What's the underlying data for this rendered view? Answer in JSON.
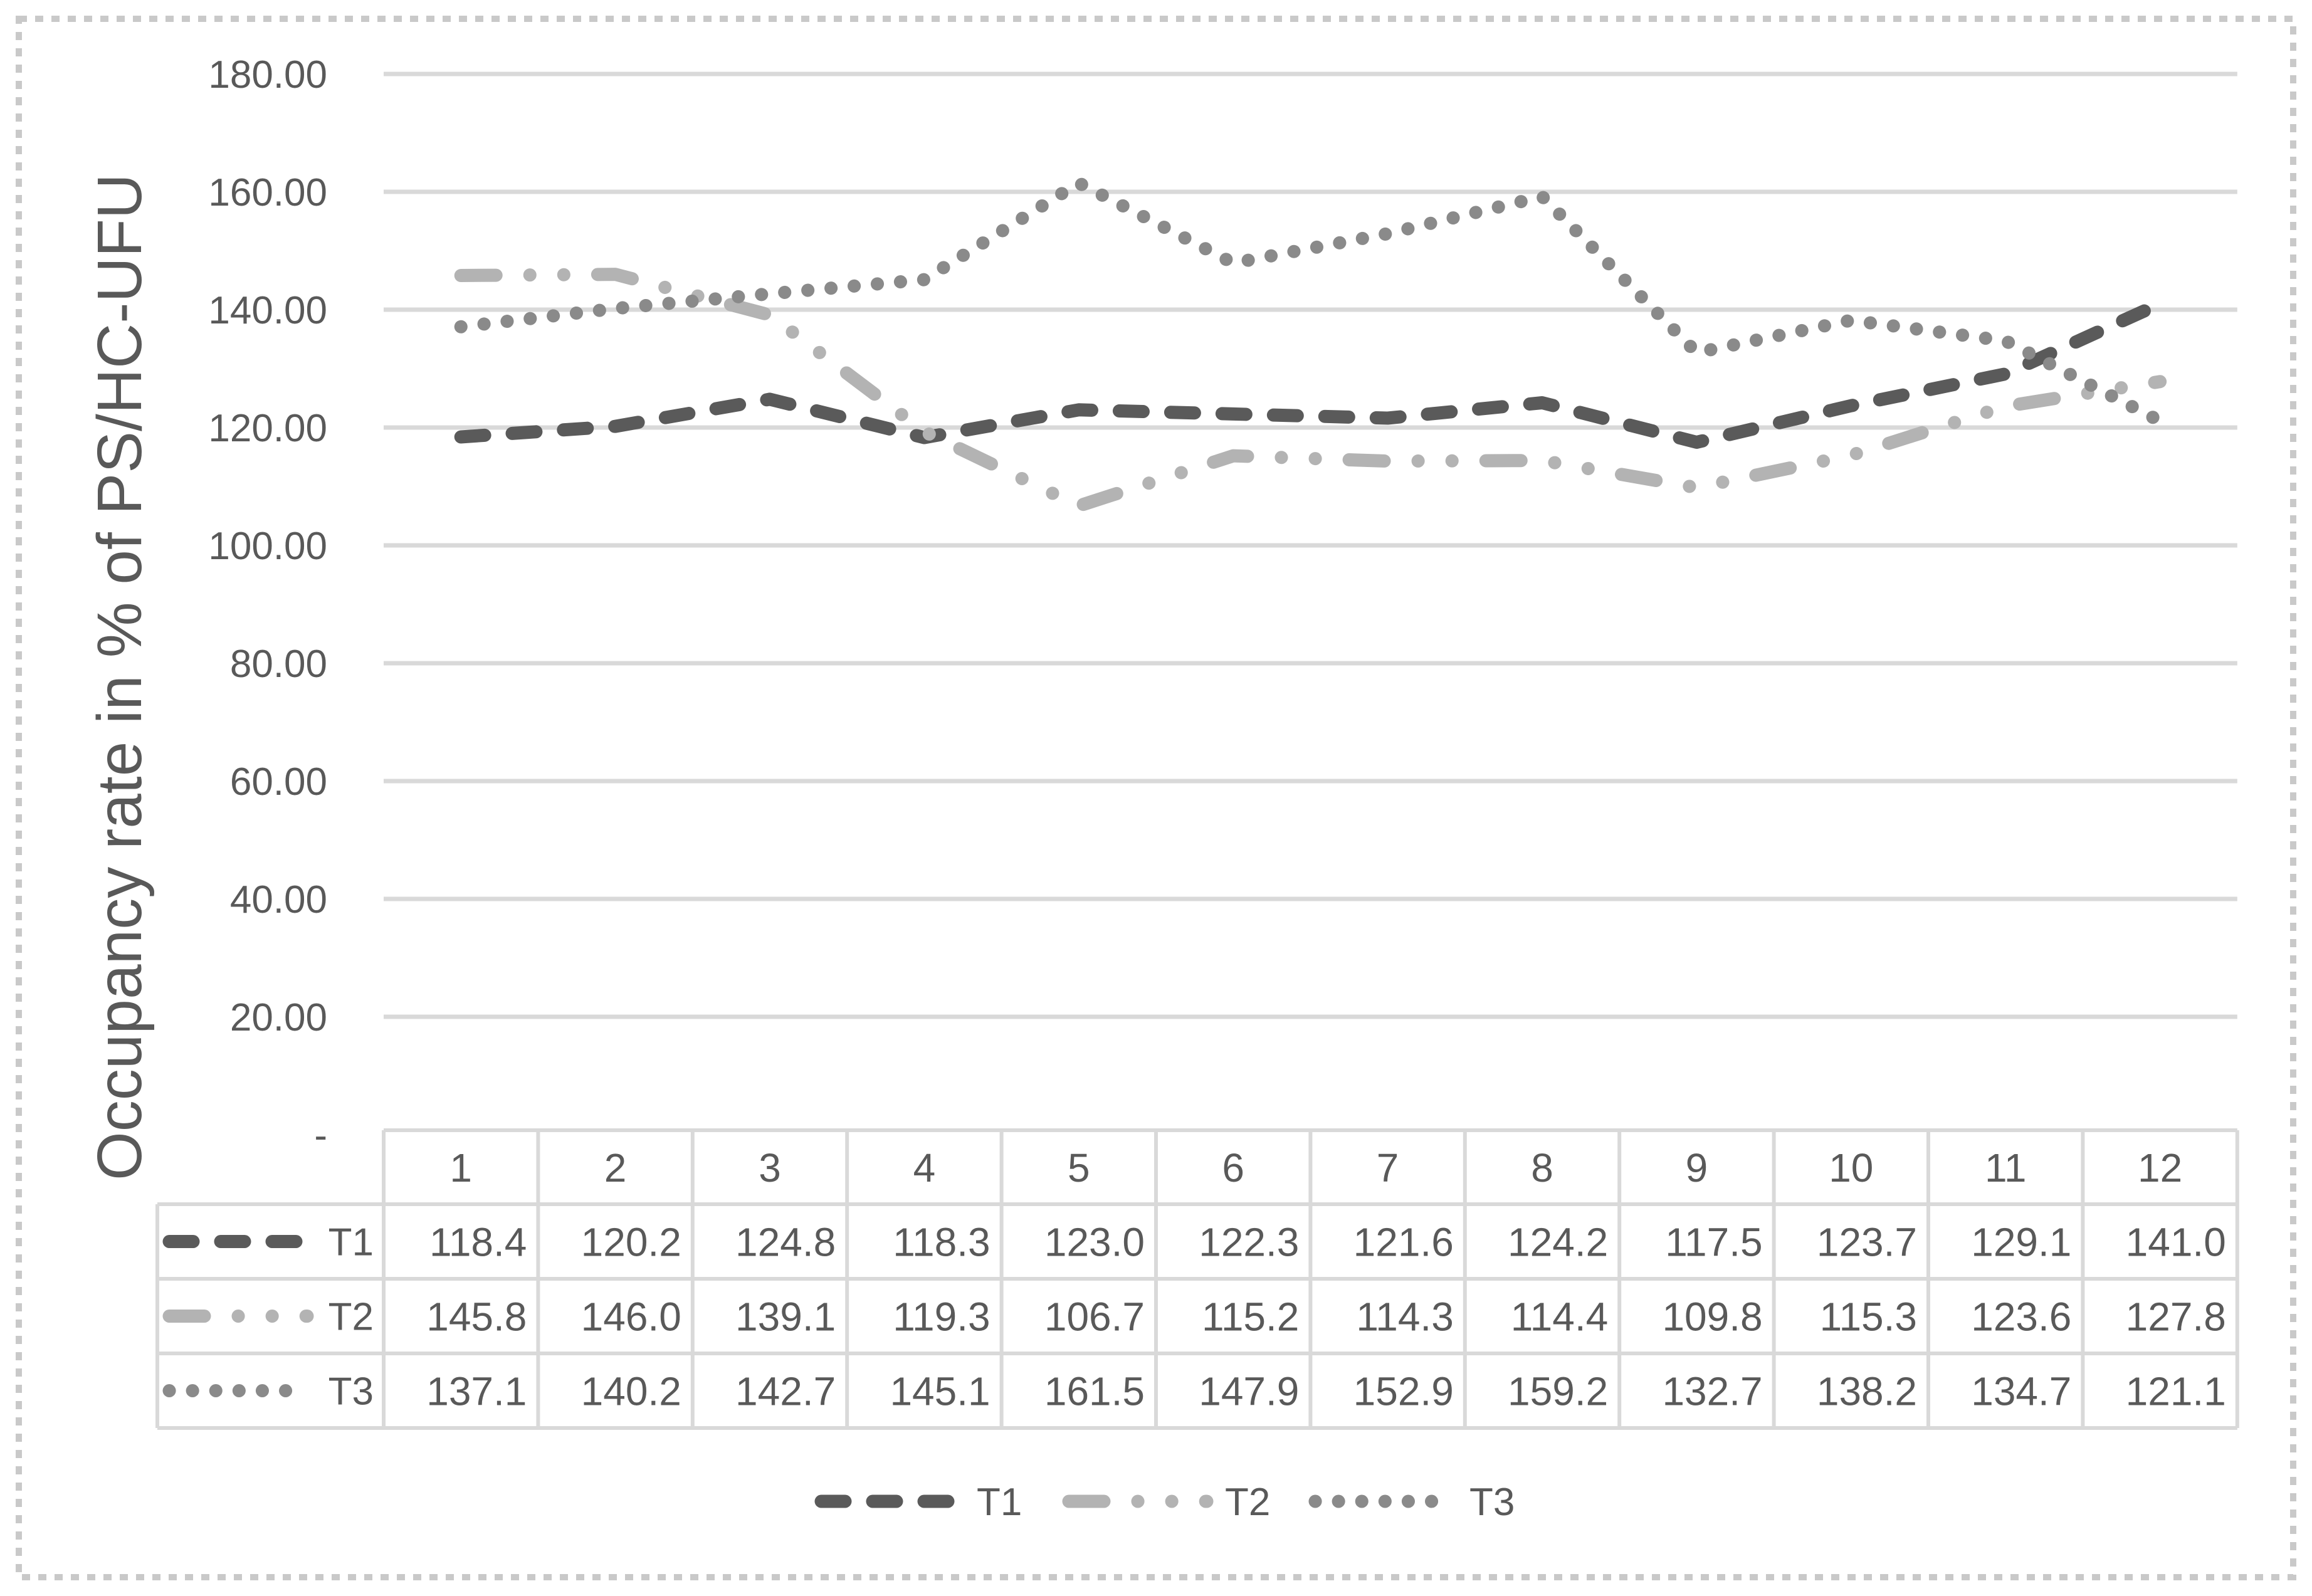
{
  "chart_data": {
    "type": "line",
    "title": "",
    "xlabel": "",
    "ylabel": "Occupancy rate in % of PS/HC-UFU",
    "categories": [
      "1",
      "2",
      "3",
      "4",
      "5",
      "6",
      "7",
      "8",
      "9",
      "10",
      "11",
      "12"
    ],
    "series": [
      {
        "name": "T1",
        "color": "#5a5a5a",
        "dash_style": "dash",
        "values": [
          118.4,
          120.2,
          124.8,
          118.3,
          123.0,
          122.3,
          121.6,
          124.2,
          117.5,
          123.7,
          129.1,
          141.0
        ]
      },
      {
        "name": "T2",
        "color": "#b3b3b3",
        "dash_style": "long-dash-dot-dot",
        "values": [
          145.8,
          146.0,
          139.1,
          119.3,
          106.7,
          115.2,
          114.3,
          114.4,
          109.8,
          115.3,
          123.6,
          127.8
        ]
      },
      {
        "name": "T3",
        "color": "#8a8a8a",
        "dash_style": "dot",
        "values": [
          137.1,
          140.2,
          142.7,
          145.1,
          161.5,
          147.9,
          152.9,
          159.2,
          132.7,
          138.2,
          134.7,
          121.1
        ]
      }
    ],
    "ylim": [
      0,
      180
    ],
    "ytick_step": 20,
    "ytick_labels": [
      "-",
      "20.00",
      "40.00",
      "60.00",
      "80.00",
      "100.00",
      "120.00",
      "140.00",
      "160.00",
      "180.00"
    ],
    "grid": true,
    "legend_position": "bottom",
    "legend_entries": [
      "T1",
      "T2",
      "T3"
    ],
    "data_table_shown": true,
    "value_decimals": 1,
    "colors": {
      "text": "#595959",
      "gridline": "#d9d9d9",
      "table_border": "#d9d9d9",
      "outer_dotted_border": "#c9c9c9",
      "background": "#ffffff"
    }
  }
}
